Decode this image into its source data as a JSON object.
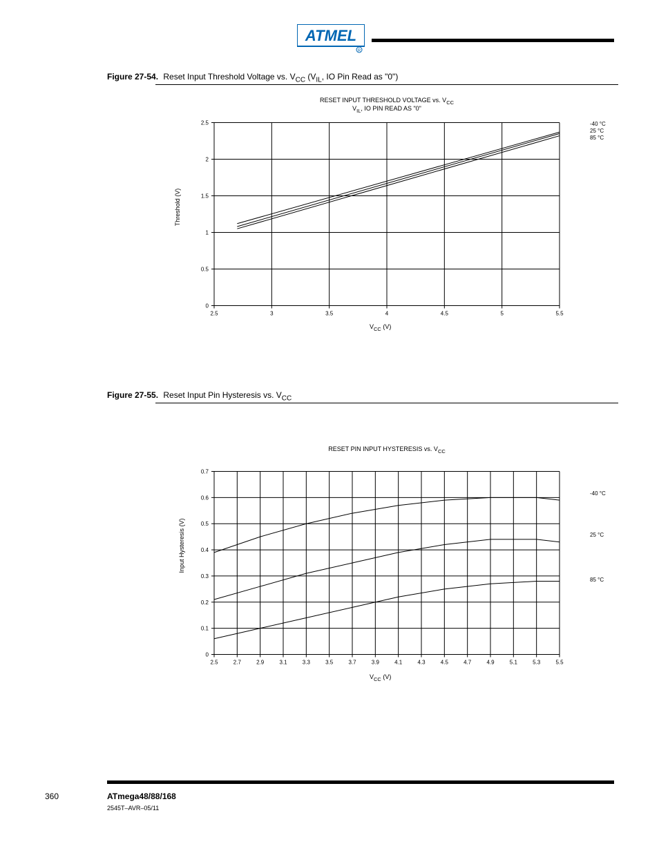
{
  "logo_text": "ATMEL",
  "logo_color_fill": "#0066b3",
  "logo_color_stroke": "#0066b3",
  "figure1": {
    "label": "Figure 27-54.",
    "title": "Reset Input Threshold Voltage vs. V",
    "title_sub": "CC",
    "title_tail": " (V",
    "title_sub2": "IL",
    "title_tail2": ", IO Pin Read as \"0\")",
    "chart_title": "RESET INPUT THRESHOLD VOLTAGE vs. V",
    "chart_title_sub": "CC",
    "chart_subtitle": "V",
    "chart_subtitle_sub": "IL",
    "chart_subtitle_tail": ", IO PIN READ AS \"0\"",
    "type": "line",
    "x_label": "V",
    "x_label_sub": "CC",
    "x_label_tail": " (V)",
    "y_label": "Threshold (V)",
    "xmin": 2.5,
    "xmax": 5.5,
    "xstep": 0.5,
    "ymin": 0,
    "ymax": 2.5,
    "ystep": 0.5,
    "xticks": [
      "2.5",
      "3",
      "3.5",
      "4",
      "4.5",
      "5",
      "5.5"
    ],
    "yticks": [
      "0",
      "0.5",
      "1",
      "1.5",
      "2",
      "2.5"
    ],
    "series": [
      {
        "label": "85 °C",
        "color": "#000000",
        "points": [
          [
            2.7,
            1.05
          ],
          [
            5.5,
            2.32
          ]
        ]
      },
      {
        "label": "25 °C",
        "color": "#000000",
        "points": [
          [
            2.7,
            1.08
          ],
          [
            5.5,
            2.35
          ]
        ]
      },
      {
        "label": "-40 °C",
        "color": "#000000",
        "points": [
          [
            2.7,
            1.12
          ],
          [
            5.5,
            2.37
          ]
        ]
      }
    ],
    "series_labels_pos": {
      "-40 °C": {
        "x": 574,
        "y": 5
      },
      "25 °C": {
        "x": 574,
        "y": 15
      },
      "85 °C": {
        "x": 574,
        "y": 25
      }
    },
    "background": "#ffffff",
    "grid_color": "#000000",
    "line_width": 1
  },
  "figure2": {
    "label": "Figure 27-55.",
    "title": "Reset Input Pin Hysteresis vs. V",
    "title_sub": "CC",
    "chart_title": "RESET PIN INPUT HYSTERESIS vs. V",
    "chart_title_sub": "CC",
    "type": "line",
    "x_label": "V",
    "x_label_sub": "CC",
    "x_label_tail": " (V)",
    "y_label": "Input Hysteresis (V)",
    "xmin": 2.5,
    "xmax": 5.5,
    "xstep": 0.2,
    "ymin": 0,
    "ymax": 0.7,
    "ystep": 0.1,
    "xticks": [
      "2.5",
      "2.7",
      "2.9",
      "3.1",
      "3.3",
      "3.5",
      "3.7",
      "3.9",
      "4.1",
      "4.3",
      "4.5",
      "4.7",
      "4.9",
      "5.1",
      "5.3",
      "5.5"
    ],
    "yticks": [
      "0",
      "0.1",
      "0.2",
      "0.3",
      "0.4",
      "0.5",
      "0.6",
      "0.7"
    ],
    "series": [
      {
        "label": "-40 °C",
        "color": "#000000",
        "points": [
          [
            2.5,
            0.39
          ],
          [
            2.9,
            0.45
          ],
          [
            3.3,
            0.5
          ],
          [
            3.7,
            0.54
          ],
          [
            4.1,
            0.57
          ],
          [
            4.5,
            0.59
          ],
          [
            4.9,
            0.6
          ],
          [
            5.3,
            0.6
          ],
          [
            5.5,
            0.59
          ]
        ]
      },
      {
        "label": "25 °C",
        "color": "#000000",
        "points": [
          [
            2.5,
            0.21
          ],
          [
            2.9,
            0.26
          ],
          [
            3.3,
            0.31
          ],
          [
            3.7,
            0.35
          ],
          [
            4.1,
            0.39
          ],
          [
            4.5,
            0.42
          ],
          [
            4.9,
            0.44
          ],
          [
            5.3,
            0.44
          ],
          [
            5.5,
            0.43
          ]
        ]
      },
      {
        "label": "85 °C",
        "color": "#000000",
        "points": [
          [
            2.5,
            0.06
          ],
          [
            2.9,
            0.1
          ],
          [
            3.3,
            0.14
          ],
          [
            3.7,
            0.18
          ],
          [
            4.1,
            0.22
          ],
          [
            4.5,
            0.25
          ],
          [
            4.9,
            0.27
          ],
          [
            5.3,
            0.28
          ],
          [
            5.5,
            0.28
          ]
        ]
      }
    ],
    "series_labels_pos": {
      "-40 °C": {
        "x": 574,
        "y": 35
      },
      "25 °C": {
        "x": 574,
        "y": 95
      },
      "85 °C": {
        "x": 574,
        "y": 160
      }
    },
    "background": "#ffffff",
    "grid_color": "#000000",
    "line_width": 1
  },
  "footer": {
    "page_number": "360",
    "doc_ref": "ATmega48/88/168",
    "doc_id": "2545T–AVR–05/11"
  }
}
